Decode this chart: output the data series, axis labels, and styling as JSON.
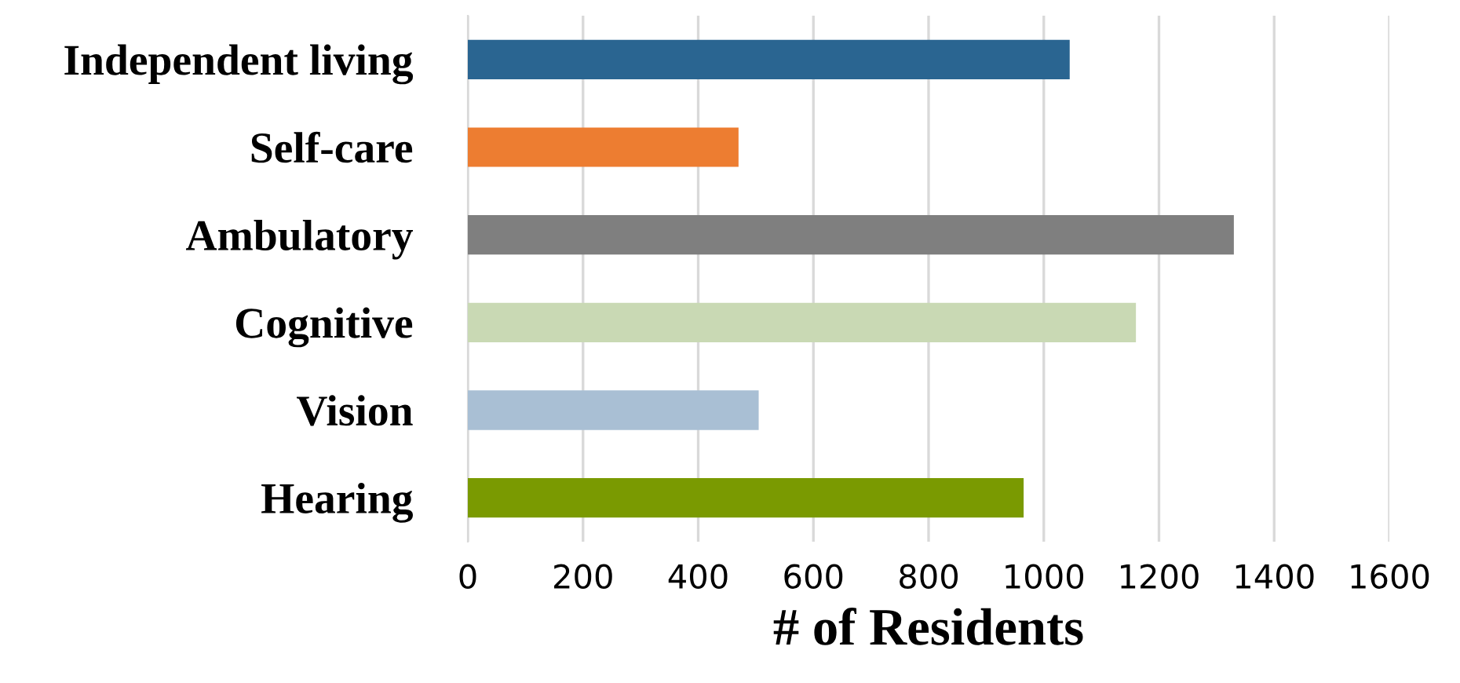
{
  "chart_data": {
    "type": "bar",
    "orientation": "horizontal",
    "xlabel": "# of Residents",
    "categories": [
      "Independent living",
      "Self-care",
      "Ambulatory",
      "Cognitive",
      "Vision",
      "Hearing"
    ],
    "values": [
      1045,
      470,
      1330,
      1160,
      505,
      965
    ],
    "colors": [
      "#2a6591",
      "#ed7d31",
      "#7f7f7f",
      "#c9d9b4",
      "#a9bfd4",
      "#7a9a01"
    ],
    "xlim": [
      0,
      1600
    ],
    "xticks": [
      0,
      200,
      400,
      600,
      800,
      1000,
      1200,
      1400,
      1600
    ],
    "grid": "x",
    "legend": false
  }
}
